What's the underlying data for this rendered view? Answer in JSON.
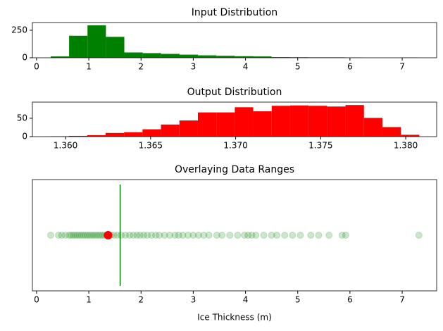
{
  "chart_data": [
    {
      "type": "histogram",
      "title": "Input Distribution",
      "color": "#008000",
      "bins": [
        0.27,
        0.6225,
        0.975,
        1.3275,
        1.68,
        2.0325,
        2.385,
        2.7375,
        3.09,
        3.4425,
        3.795,
        4.1475,
        4.5,
        4.8525,
        5.205,
        5.5575,
        5.91,
        6.2625,
        6.615,
        6.9675,
        7.32
      ],
      "values": [
        12,
        200,
        295,
        190,
        48,
        42,
        35,
        28,
        22,
        18,
        14,
        12,
        6,
        5,
        4,
        4,
        2,
        0,
        0,
        2
      ],
      "xlim": [
        -0.08,
        7.66
      ],
      "xticks": [
        0,
        1,
        2,
        3,
        4,
        5,
        6,
        7
      ],
      "ylim": [
        0,
        320
      ],
      "yticks": [
        0,
        250
      ]
    },
    {
      "type": "histogram",
      "title": "Output Distribution",
      "color": "#ff0000",
      "bins": [
        1.3591,
        1.360185,
        1.36127,
        1.362355,
        1.36344,
        1.364525,
        1.36561,
        1.366695,
        1.36778,
        1.368865,
        1.36995,
        1.371035,
        1.37212,
        1.373205,
        1.37429,
        1.375375,
        1.37646,
        1.377545,
        1.37863,
        1.379715,
        1.3808
      ],
      "values": [
        1,
        2,
        4,
        10,
        12,
        20,
        33,
        44,
        66,
        66,
        80,
        69,
        84,
        85,
        84,
        82,
        86,
        51,
        26,
        5
      ],
      "xlim": [
        1.35805,
        1.38182
      ],
      "xticks": [
        {
          "value": 1.36,
          "label": "1.360"
        },
        {
          "value": 1.365,
          "label": "1.365"
        },
        {
          "value": 1.37,
          "label": "1.370"
        },
        {
          "value": 1.375,
          "label": "1.375"
        },
        {
          "value": 1.38,
          "label": "1.380"
        }
      ],
      "ylim": [
        0,
        94
      ],
      "yticks": [
        0,
        50
      ]
    },
    {
      "type": "scatter",
      "title": "Overlaying Data Ranges",
      "xlabel": "Ice Thickness (m)",
      "xlim": [
        -0.08,
        7.66
      ],
      "xticks": [
        0,
        1,
        2,
        3,
        4,
        5,
        6,
        7
      ],
      "ylim": [
        -1.1,
        1.1
      ],
      "series": [
        {
          "color": "#008000",
          "alpha": 0.2,
          "x": [
            0.27,
            0.42,
            0.48,
            0.55,
            0.62,
            0.66,
            0.7,
            0.74,
            0.78,
            0.82,
            0.86,
            0.9,
            0.94,
            0.98,
            1.02,
            1.06,
            1.1,
            1.14,
            1.18,
            1.22,
            1.26,
            1.3,
            1.34,
            1.42,
            1.48,
            1.55,
            1.62,
            1.7,
            1.78,
            1.85,
            1.92,
            1.98,
            2.05,
            2.12,
            2.2,
            2.28,
            2.35,
            2.45,
            2.55,
            2.65,
            2.72,
            2.8,
            2.9,
            3.0,
            3.1,
            3.2,
            3.3,
            3.45,
            3.55,
            3.7,
            3.85,
            3.98,
            4.05,
            4.12,
            4.2,
            4.35,
            4.5,
            4.6,
            4.75,
            4.9,
            5.05,
            5.25,
            5.4,
            5.6,
            5.85,
            5.92,
            7.32
          ],
          "y": [
            0,
            0,
            0,
            0,
            0,
            0,
            0,
            0,
            0,
            0,
            0,
            0,
            0,
            0,
            0,
            0,
            0,
            0,
            0,
            0,
            0,
            0,
            0,
            0,
            0,
            0,
            0,
            0,
            0,
            0,
            0,
            0,
            0,
            0,
            0,
            0,
            0,
            0,
            0,
            0,
            0,
            0,
            0,
            0,
            0,
            0,
            0,
            0,
            0,
            0,
            0,
            0,
            0,
            0,
            0,
            0,
            0,
            0,
            0,
            0,
            0,
            0,
            0,
            0,
            0,
            0,
            0
          ]
        },
        {
          "color": "#ff0000",
          "alpha": 1,
          "x": [
            1.37
          ],
          "y": [
            0
          ]
        }
      ],
      "vlines": [
        {
          "x": 1.6,
          "ymin": -1,
          "ymax": 1,
          "color": "#008000"
        }
      ]
    }
  ]
}
